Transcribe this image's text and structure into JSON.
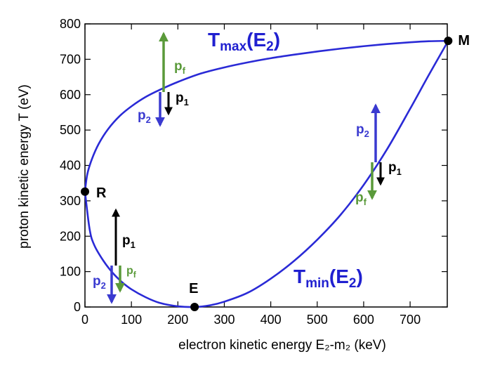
{
  "chart_data": {
    "type": "line",
    "xlabel": "electron kinetic energy E₂-m₂  (keV)",
    "ylabel": "proton kinetic energy T (eV)",
    "xlim": [
      0,
      780
    ],
    "ylim": [
      0,
      800
    ],
    "xticks": [
      0,
      100,
      200,
      300,
      400,
      500,
      600,
      700
    ],
    "yticks": [
      0,
      100,
      200,
      300,
      400,
      500,
      600,
      700,
      800
    ],
    "grid": false,
    "colors": {
      "curve": "#2a2ad6",
      "p1": "#000000",
      "p2": "#3a3ad0",
      "pf": "#5a9a3a"
    },
    "series": [
      {
        "name": "Tmax(E2)",
        "x": [
          0,
          5,
          15,
          30,
          50,
          75,
          100,
          130,
          160,
          200,
          250,
          300,
          350,
          400,
          450,
          500,
          550,
          600,
          650,
          700,
          740,
          782
        ],
        "y": [
          326,
          375,
          418,
          462,
          503,
          540,
          567,
          593,
          613,
          636,
          660,
          677,
          691,
          703,
          713,
          722,
          730,
          737,
          743,
          748,
          751,
          752
        ]
      },
      {
        "name": "Tmin(E2)",
        "x": [
          0,
          10,
          20,
          40,
          60,
          80,
          100,
          130,
          160,
          200,
          236,
          270,
          300,
          350,
          400,
          450,
          500,
          550,
          600,
          650,
          700,
          740,
          782
        ],
        "y": [
          326,
          220,
          175,
          130,
          96,
          70,
          50,
          28,
          12,
          2,
          0,
          5,
          15,
          40,
          80,
          130,
          190,
          260,
          345,
          445,
          560,
          655,
          752
        ]
      }
    ],
    "points": [
      {
        "label": "R",
        "x": 0,
        "y": 326
      },
      {
        "label": "E",
        "x": 236,
        "y": 0
      },
      {
        "label": "M",
        "x": 782,
        "y": 752
      }
    ],
    "annotations": {
      "curve_top": {
        "base": "T",
        "sub": "max",
        "arg": "E",
        "argsub": "2"
      },
      "curve_bottom": {
        "base": "T",
        "sub": "min",
        "arg": "E",
        "argsub": "2"
      },
      "p1": {
        "base": "p",
        "sub": "1"
      },
      "p2": {
        "base": "p",
        "sub": "2"
      },
      "pf": {
        "base": "p",
        "sub": "f"
      }
    }
  }
}
